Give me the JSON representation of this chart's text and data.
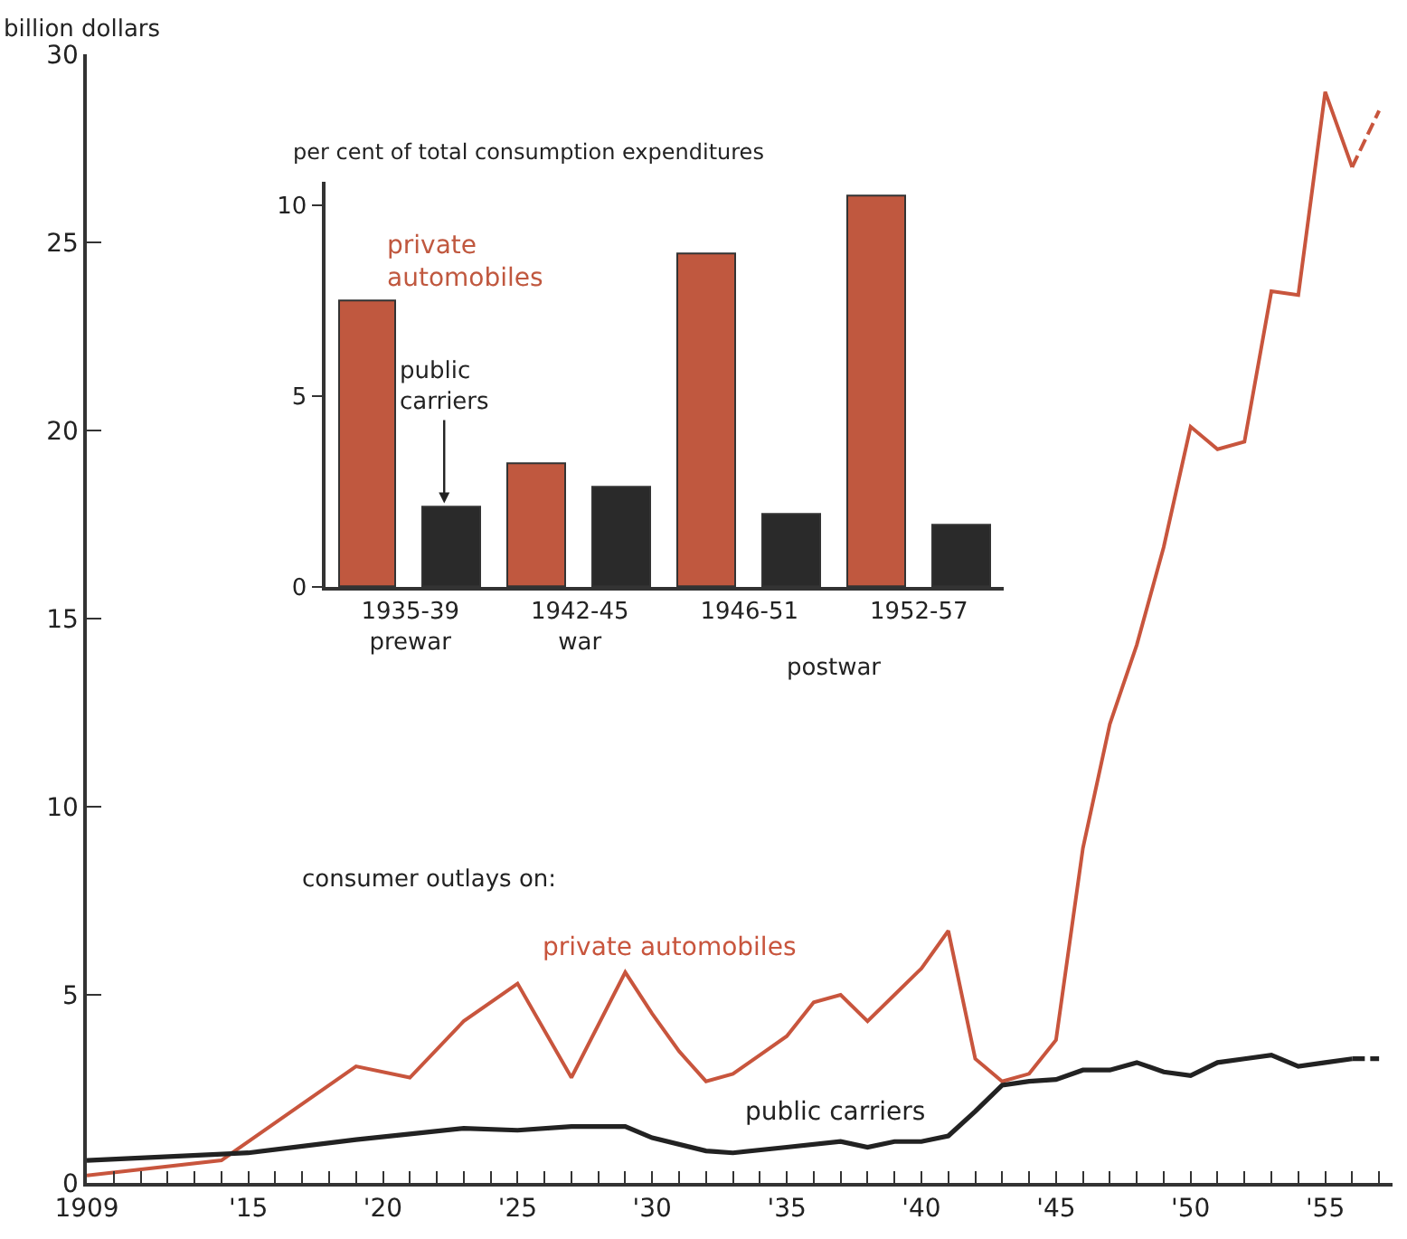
{
  "chart_data": [
    {
      "type": "line",
      "ylabel": "billion dollars",
      "annotations": [
        "consumer outlays on:"
      ],
      "legend": false,
      "marker": "none",
      "xlim": [
        1909,
        1957.5
      ],
      "xticks": [
        {
          "value": 1909,
          "label": "1909"
        },
        {
          "value": 1910,
          "label": null
        },
        {
          "value": 1911,
          "label": null
        },
        {
          "value": 1912,
          "label": null
        },
        {
          "value": 1913,
          "label": null
        },
        {
          "value": 1914,
          "label": null
        },
        {
          "value": 1915,
          "label": "'15"
        },
        {
          "value": 1916,
          "label": null
        },
        {
          "value": 1917,
          "label": null
        },
        {
          "value": 1918,
          "label": null
        },
        {
          "value": 1919,
          "label": null
        },
        {
          "value": 1920,
          "label": "'20"
        },
        {
          "value": 1921,
          "label": null
        },
        {
          "value": 1922,
          "label": null
        },
        {
          "value": 1923,
          "label": null
        },
        {
          "value": 1924,
          "label": null
        },
        {
          "value": 1925,
          "label": "'25"
        },
        {
          "value": 1926,
          "label": null
        },
        {
          "value": 1927,
          "label": null
        },
        {
          "value": 1928,
          "label": null
        },
        {
          "value": 1929,
          "label": null
        },
        {
          "value": 1930,
          "label": "'30"
        },
        {
          "value": 1931,
          "label": null
        },
        {
          "value": 1932,
          "label": null
        },
        {
          "value": 1933,
          "label": null
        },
        {
          "value": 1934,
          "label": null
        },
        {
          "value": 1935,
          "label": "'35"
        },
        {
          "value": 1936,
          "label": null
        },
        {
          "value": 1937,
          "label": null
        },
        {
          "value": 1938,
          "label": null
        },
        {
          "value": 1939,
          "label": null
        },
        {
          "value": 1940,
          "label": "'40"
        },
        {
          "value": 1941,
          "label": null
        },
        {
          "value": 1942,
          "label": null
        },
        {
          "value": 1943,
          "label": null
        },
        {
          "value": 1944,
          "label": null
        },
        {
          "value": 1945,
          "label": "'45"
        },
        {
          "value": 1946,
          "label": null
        },
        {
          "value": 1947,
          "label": null
        },
        {
          "value": 1948,
          "label": null
        },
        {
          "value": 1949,
          "label": null
        },
        {
          "value": 1950,
          "label": "'50"
        },
        {
          "value": 1951,
          "label": null
        },
        {
          "value": 1952,
          "label": null
        },
        {
          "value": 1953,
          "label": null
        },
        {
          "value": 1954,
          "label": null
        },
        {
          "value": 1955,
          "label": "'55"
        },
        {
          "value": 1956,
          "label": null
        },
        {
          "value": 1957,
          "label": null
        }
      ],
      "ylim": [
        0,
        30
      ],
      "yticks": [
        0,
        5,
        10,
        15,
        20,
        25,
        30
      ],
      "series": [
        {
          "name": "private automobiles",
          "color": "#c8553d",
          "line_style": "solid",
          "x": [
            1909,
            1914,
            1919,
            1921,
            1923,
            1925,
            1927,
            1929,
            1930,
            1931,
            1932,
            1933,
            1934,
            1935,
            1936,
            1937,
            1938,
            1939,
            1940,
            1941,
            1942,
            1943,
            1944,
            1945,
            1946,
            1947,
            1948,
            1949,
            1950,
            1951,
            1952,
            1953,
            1954,
            1955,
            1956
          ],
          "values": [
            0.2,
            0.6,
            3.1,
            2.8,
            4.3,
            5.3,
            2.8,
            5.6,
            4.5,
            3.5,
            2.7,
            2.9,
            3.4,
            3.9,
            4.8,
            5.0,
            4.3,
            5.0,
            5.7,
            6.7,
            3.3,
            2.7,
            2.9,
            3.8,
            8.9,
            12.2,
            14.3,
            16.9,
            20.1,
            19.5,
            19.7,
            23.7,
            23.6,
            29.0,
            27.0
          ]
        },
        {
          "color": "#c8553d",
          "line_style": "dashed",
          "x": [
            1956,
            1957
          ],
          "values": [
            27.0,
            28.5
          ]
        },
        {
          "name": "public carriers",
          "color": "#222222",
          "line_style": "solid",
          "x": [
            1909,
            1915,
            1919,
            1921,
            1923,
            1925,
            1927,
            1929,
            1930,
            1932,
            1933,
            1935,
            1937,
            1938,
            1939,
            1940,
            1941,
            1942,
            1943,
            1944,
            1945,
            1946,
            1947,
            1948,
            1949,
            1950,
            1951,
            1952,
            1953,
            1954,
            1955,
            1956
          ],
          "values": [
            0.6,
            0.8,
            1.15,
            1.3,
            1.45,
            1.4,
            1.5,
            1.5,
            1.2,
            0.85,
            0.8,
            0.95,
            1.1,
            0.95,
            1.1,
            1.1,
            1.25,
            1.9,
            2.6,
            2.7,
            2.75,
            3.0,
            3.0,
            3.2,
            2.95,
            2.85,
            3.2,
            3.3,
            3.4,
            3.1,
            3.2,
            3.3
          ]
        },
        {
          "color": "#222222",
          "line_style": "dashed",
          "x": [
            1956,
            1957
          ],
          "values": [
            3.3,
            3.3
          ]
        }
      ]
    },
    {
      "type": "bar",
      "ylabel": "per cent of total consumption expenditures",
      "annotations": [
        "postwar"
      ],
      "legend": false,
      "categories": [
        "1935-39\nprewar",
        "1942-45\nwar",
        "1946-51",
        "1952-57"
      ],
      "ylim": [
        0,
        10.6
      ],
      "yticks": [
        0,
        5,
        10
      ],
      "series": [
        {
          "name": "private automobiles",
          "color": "#c0583f",
          "values": [
            7.5,
            3.2,
            8.7,
            10.2
          ]
        },
        {
          "name": "public carriers",
          "color": "#2a2a2a",
          "values": [
            2.1,
            2.6,
            1.9,
            1.6
          ]
        }
      ]
    }
  ]
}
